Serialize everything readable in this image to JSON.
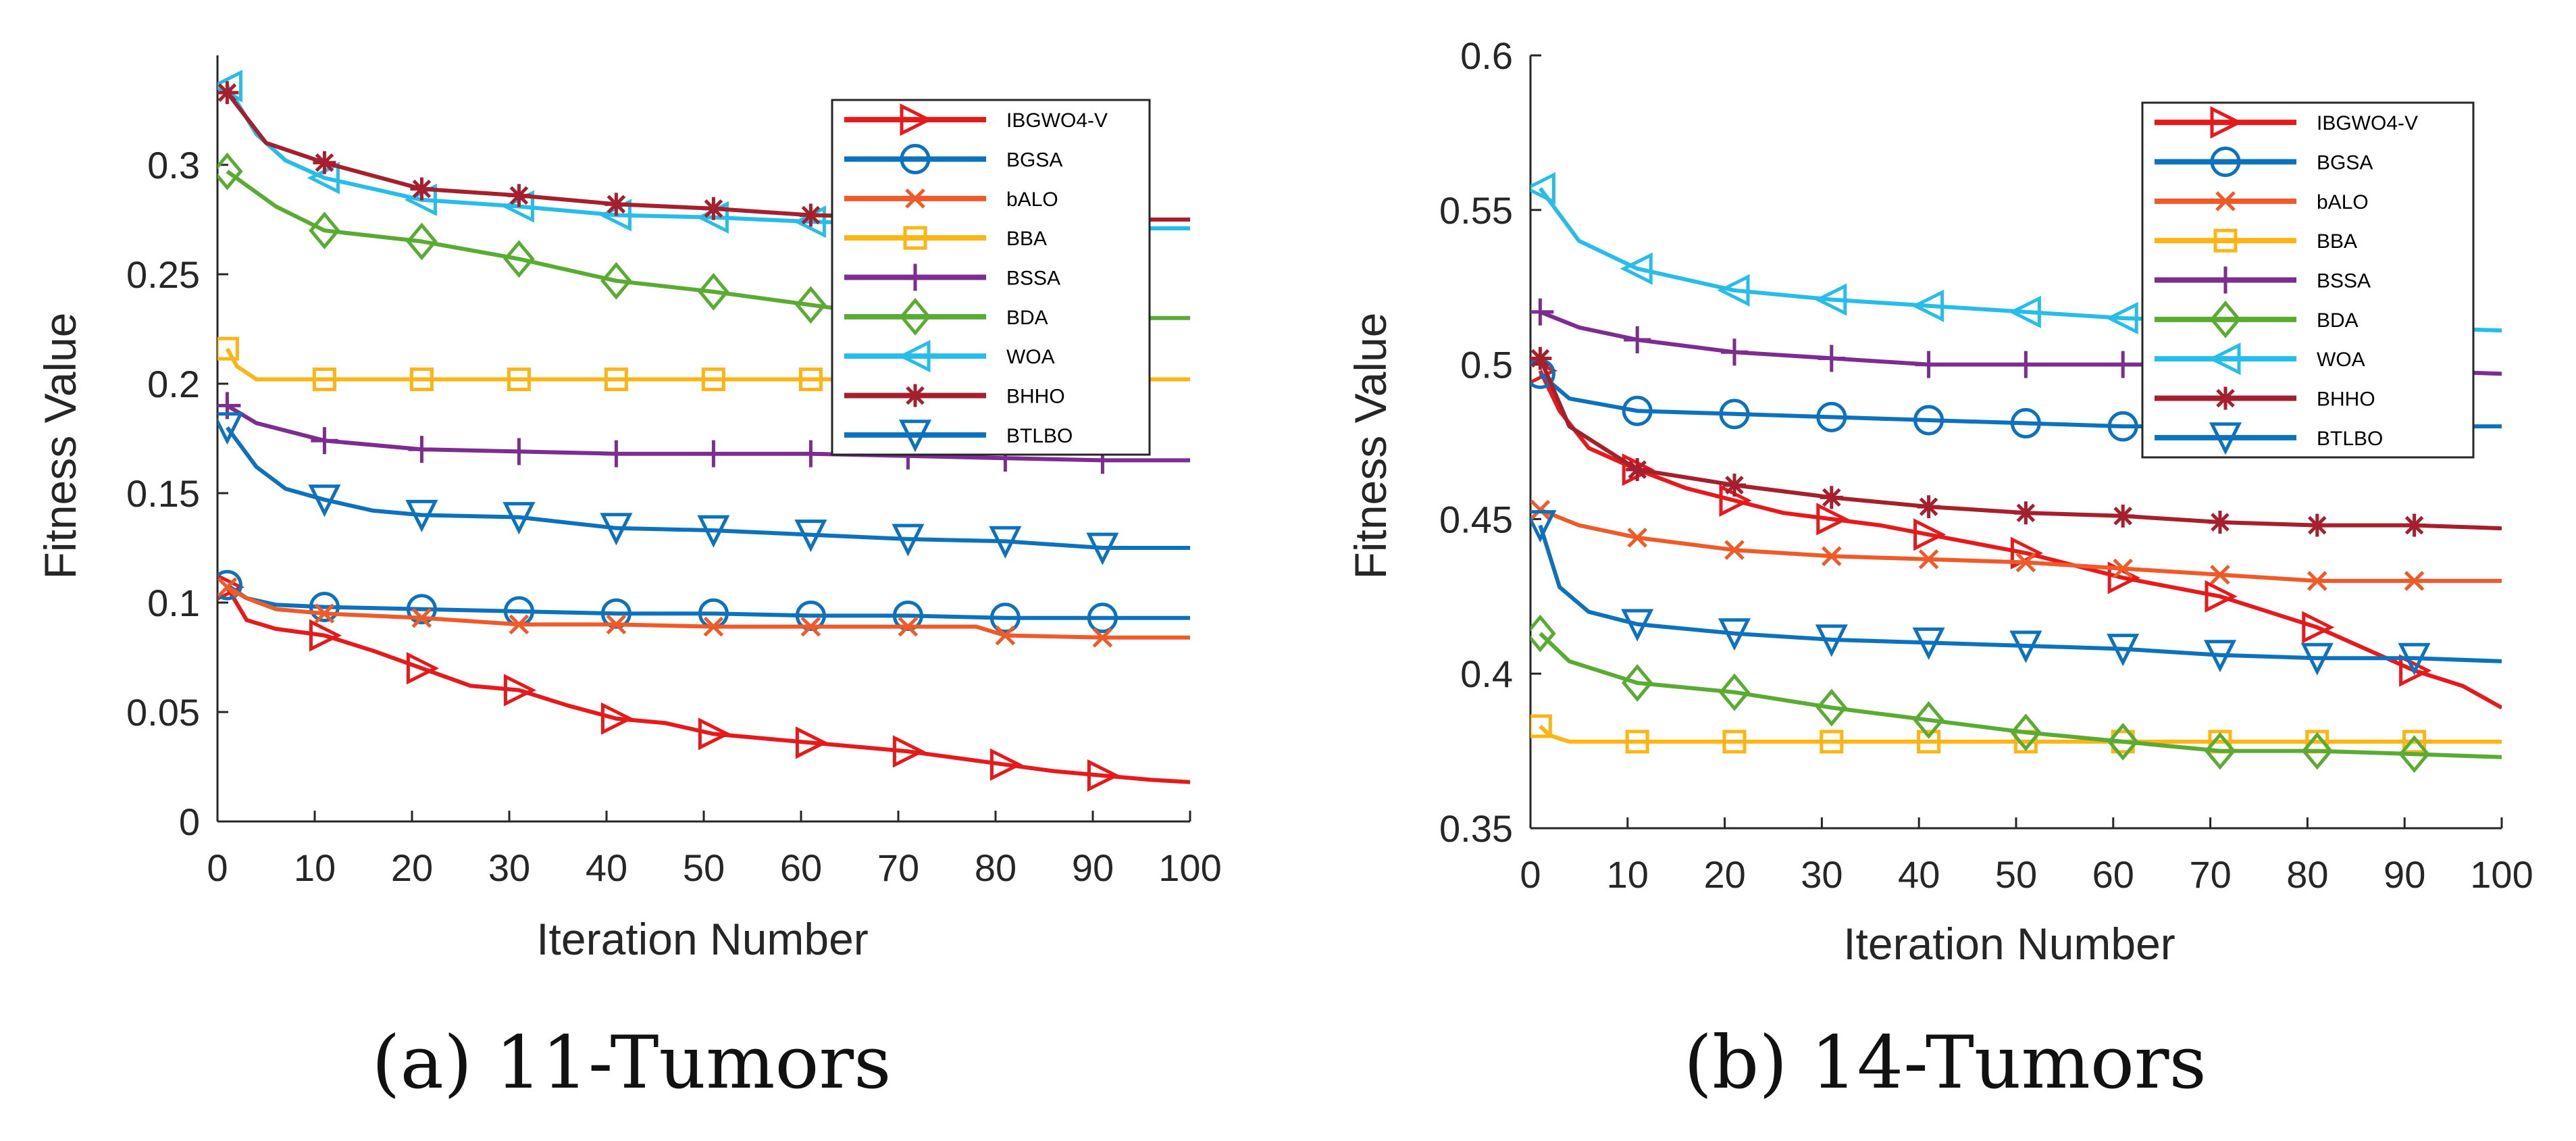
{
  "chart_data": [
    {
      "type": "line",
      "caption": "(a) 11-Tumors",
      "xlabel": "Iteration Number",
      "ylabel": "Fitness Value",
      "xlim": [
        0,
        100
      ],
      "ylim": [
        0,
        0.35
      ],
      "xticks": [
        0,
        10,
        20,
        30,
        40,
        50,
        60,
        70,
        80,
        90,
        100
      ],
      "xtick_labels": [
        "0",
        "10",
        "20",
        "30",
        "40",
        "50",
        "60",
        "70",
        "80",
        "90",
        "100"
      ],
      "yticks": [
        0,
        0.05,
        0.1,
        0.15,
        0.2,
        0.25,
        0.3
      ],
      "ytick_labels": [
        "0",
        "0.05",
        "0.1",
        "0.15",
        "0.2",
        "0.25",
        "0.3"
      ],
      "legend_position": "top-right",
      "series": [
        {
          "name": "IBGWO4-V",
          "color": "#e8191b",
          "marker": "triangle-right",
          "x": [
            1,
            3,
            6,
            11,
            16,
            21,
            26,
            31,
            36,
            41,
            46,
            51,
            56,
            61,
            66,
            71,
            76,
            81,
            86,
            91,
            96,
            100
          ],
          "y": [
            0.107,
            0.092,
            0.088,
            0.085,
            0.078,
            0.07,
            0.062,
            0.06,
            0.053,
            0.047,
            0.045,
            0.04,
            0.038,
            0.036,
            0.034,
            0.032,
            0.029,
            0.026,
            0.023,
            0.021,
            0.019,
            0.018
          ]
        },
        {
          "name": "BGSA",
          "color": "#0d72bd",
          "marker": "circle",
          "x": [
            1,
            3,
            6,
            11,
            21,
            31,
            41,
            51,
            61,
            71,
            81,
            91,
            100
          ],
          "y": [
            0.108,
            0.102,
            0.099,
            0.098,
            0.097,
            0.096,
            0.095,
            0.095,
            0.094,
            0.094,
            0.093,
            0.093,
            0.093
          ]
        },
        {
          "name": "bALO",
          "color": "#f05a28",
          "marker": "x",
          "x": [
            1,
            3,
            6,
            11,
            21,
            31,
            41,
            51,
            61,
            71,
            78,
            81,
            91,
            100
          ],
          "y": [
            0.107,
            0.102,
            0.097,
            0.095,
            0.093,
            0.09,
            0.09,
            0.089,
            0.089,
            0.089,
            0.089,
            0.085,
            0.084,
            0.084
          ]
        },
        {
          "name": "BBA",
          "color": "#fdb515",
          "marker": "square",
          "x": [
            1,
            2,
            4,
            11,
            21,
            31,
            41,
            51,
            61,
            71,
            81,
            91,
            100
          ],
          "y": [
            0.216,
            0.208,
            0.202,
            0.202,
            0.202,
            0.202,
            0.202,
            0.202,
            0.202,
            0.202,
            0.202,
            0.202,
            0.202
          ]
        },
        {
          "name": "BSSA",
          "color": "#7b2d90",
          "marker": "plus",
          "x": [
            1,
            4,
            11,
            21,
            31,
            41,
            51,
            61,
            71,
            81,
            91,
            100
          ],
          "y": [
            0.19,
            0.182,
            0.174,
            0.17,
            0.169,
            0.168,
            0.168,
            0.168,
            0.167,
            0.166,
            0.165,
            0.165
          ]
        },
        {
          "name": "BDA",
          "color": "#5aab32",
          "marker": "diamond",
          "x": [
            1,
            6,
            11,
            21,
            31,
            41,
            51,
            61,
            71,
            81,
            91,
            100
          ],
          "y": [
            0.297,
            0.281,
            0.27,
            0.265,
            0.257,
            0.247,
            0.242,
            0.236,
            0.23,
            0.23,
            0.23,
            0.23
          ]
        },
        {
          "name": "WOA",
          "color": "#26bdea",
          "marker": "triangle-left",
          "x": [
            1,
            4,
            7,
            11,
            21,
            31,
            41,
            51,
            61,
            71,
            81,
            91,
            100
          ],
          "y": [
            0.336,
            0.314,
            0.302,
            0.294,
            0.284,
            0.281,
            0.277,
            0.276,
            0.274,
            0.273,
            0.272,
            0.271,
            0.271
          ]
        },
        {
          "name": "BHHO",
          "color": "#a61f2c",
          "marker": "star",
          "x": [
            1,
            5,
            11,
            21,
            31,
            41,
            51,
            61,
            71,
            81,
            91,
            100
          ],
          "y": [
            0.333,
            0.31,
            0.301,
            0.289,
            0.286,
            0.282,
            0.28,
            0.277,
            0.276,
            0.276,
            0.275,
            0.275
          ]
        },
        {
          "name": "BTLBO",
          "color": "#0d72bd",
          "marker": "triangle-down",
          "x": [
            1,
            4,
            7,
            11,
            16,
            21,
            31,
            41,
            51,
            61,
            71,
            81,
            91,
            100
          ],
          "y": [
            0.18,
            0.162,
            0.152,
            0.147,
            0.142,
            0.14,
            0.139,
            0.134,
            0.133,
            0.131,
            0.129,
            0.128,
            0.125,
            0.125
          ]
        }
      ],
      "legend": [
        "IBGWO4-V",
        "BGSA",
        "bALO",
        "BBA",
        "BSSA",
        "BDA",
        "WOA",
        "BHHO",
        "BTLBO"
      ]
    },
    {
      "type": "line",
      "caption": "(b) 14-Tumors",
      "xlabel": "Iteration Number",
      "ylabel": "Fitness Value",
      "xlim": [
        0,
        100
      ],
      "ylim": [
        0.35,
        0.6
      ],
      "xticks": [
        0,
        10,
        20,
        30,
        40,
        50,
        60,
        70,
        80,
        90,
        100
      ],
      "xtick_labels": [
        "0",
        "10",
        "20",
        "30",
        "40",
        "50",
        "60",
        "70",
        "80",
        "90",
        "100"
      ],
      "yticks": [
        0.35,
        0.4,
        0.45,
        0.5,
        0.55,
        0.6
      ],
      "ytick_labels": [
        "0.35",
        "0.4",
        "0.45",
        "0.5",
        "0.55",
        "0.6"
      ],
      "legend_position": "top-right",
      "series": [
        {
          "name": "IBGWO4-V",
          "color": "#e8191b",
          "marker": "triangle-right",
          "x": [
            1,
            3,
            6,
            11,
            16,
            21,
            26,
            31,
            36,
            41,
            46,
            51,
            56,
            61,
            66,
            71,
            76,
            81,
            86,
            91,
            96,
            100
          ],
          "y": [
            0.498,
            0.485,
            0.473,
            0.466,
            0.46,
            0.456,
            0.452,
            0.45,
            0.448,
            0.445,
            0.442,
            0.439,
            0.435,
            0.431,
            0.428,
            0.425,
            0.42,
            0.415,
            0.408,
            0.401,
            0.396,
            0.389
          ]
        },
        {
          "name": "BGSA",
          "color": "#0d72bd",
          "marker": "circle",
          "x": [
            1,
            4,
            11,
            21,
            31,
            41,
            51,
            61,
            71,
            81,
            91,
            100
          ],
          "y": [
            0.497,
            0.489,
            0.485,
            0.484,
            0.483,
            0.482,
            0.481,
            0.48,
            0.48,
            0.48,
            0.48,
            0.48
          ]
        },
        {
          "name": "bALO",
          "color": "#f05a28",
          "marker": "x",
          "x": [
            1,
            5,
            11,
            21,
            31,
            41,
            51,
            61,
            71,
            81,
            91,
            100
          ],
          "y": [
            0.453,
            0.448,
            0.444,
            0.44,
            0.438,
            0.437,
            0.436,
            0.434,
            0.432,
            0.43,
            0.43,
            0.43
          ]
        },
        {
          "name": "BBA",
          "color": "#fdb515",
          "marker": "square",
          "x": [
            1,
            2,
            4,
            11,
            21,
            31,
            41,
            51,
            61,
            71,
            81,
            91,
            100
          ],
          "y": [
            0.383,
            0.38,
            0.378,
            0.378,
            0.378,
            0.378,
            0.378,
            0.378,
            0.378,
            0.378,
            0.378,
            0.378,
            0.378
          ]
        },
        {
          "name": "BSSA",
          "color": "#7b2d90",
          "marker": "plus",
          "x": [
            1,
            5,
            11,
            21,
            31,
            41,
            51,
            61,
            71,
            81,
            91,
            100
          ],
          "y": [
            0.517,
            0.512,
            0.508,
            0.504,
            0.502,
            0.5,
            0.5,
            0.5,
            0.5,
            0.499,
            0.498,
            0.497
          ]
        },
        {
          "name": "BDA",
          "color": "#5aab32",
          "marker": "diamond",
          "x": [
            1,
            4,
            11,
            21,
            31,
            41,
            51,
            61,
            71,
            81,
            91,
            100
          ],
          "y": [
            0.413,
            0.404,
            0.397,
            0.394,
            0.389,
            0.385,
            0.381,
            0.378,
            0.375,
            0.375,
            0.374,
            0.373
          ]
        },
        {
          "name": "WOA",
          "color": "#26bdea",
          "marker": "triangle-left",
          "x": [
            1,
            5,
            11,
            21,
            31,
            41,
            51,
            61,
            71,
            81,
            91,
            100
          ],
          "y": [
            0.557,
            0.54,
            0.531,
            0.524,
            0.521,
            0.519,
            0.517,
            0.515,
            0.514,
            0.513,
            0.512,
            0.511
          ]
        },
        {
          "name": "BHHO",
          "color": "#a61f2c",
          "marker": "star",
          "x": [
            1,
            4,
            11,
            21,
            31,
            41,
            51,
            61,
            71,
            81,
            91,
            100
          ],
          "y": [
            0.502,
            0.48,
            0.466,
            0.461,
            0.457,
            0.454,
            0.452,
            0.451,
            0.449,
            0.448,
            0.448,
            0.447
          ]
        },
        {
          "name": "BTLBO",
          "color": "#0d72bd",
          "marker": "triangle-down",
          "x": [
            1,
            3,
            6,
            11,
            21,
            31,
            41,
            51,
            61,
            71,
            81,
            91,
            100
          ],
          "y": [
            0.448,
            0.428,
            0.42,
            0.416,
            0.413,
            0.411,
            0.41,
            0.409,
            0.408,
            0.406,
            0.405,
            0.405,
            0.404
          ]
        }
      ],
      "legend": [
        "IBGWO4-V",
        "BGSA",
        "bALO",
        "BBA",
        "BSSA",
        "BDA",
        "WOA",
        "BHHO",
        "BTLBO"
      ]
    }
  ]
}
